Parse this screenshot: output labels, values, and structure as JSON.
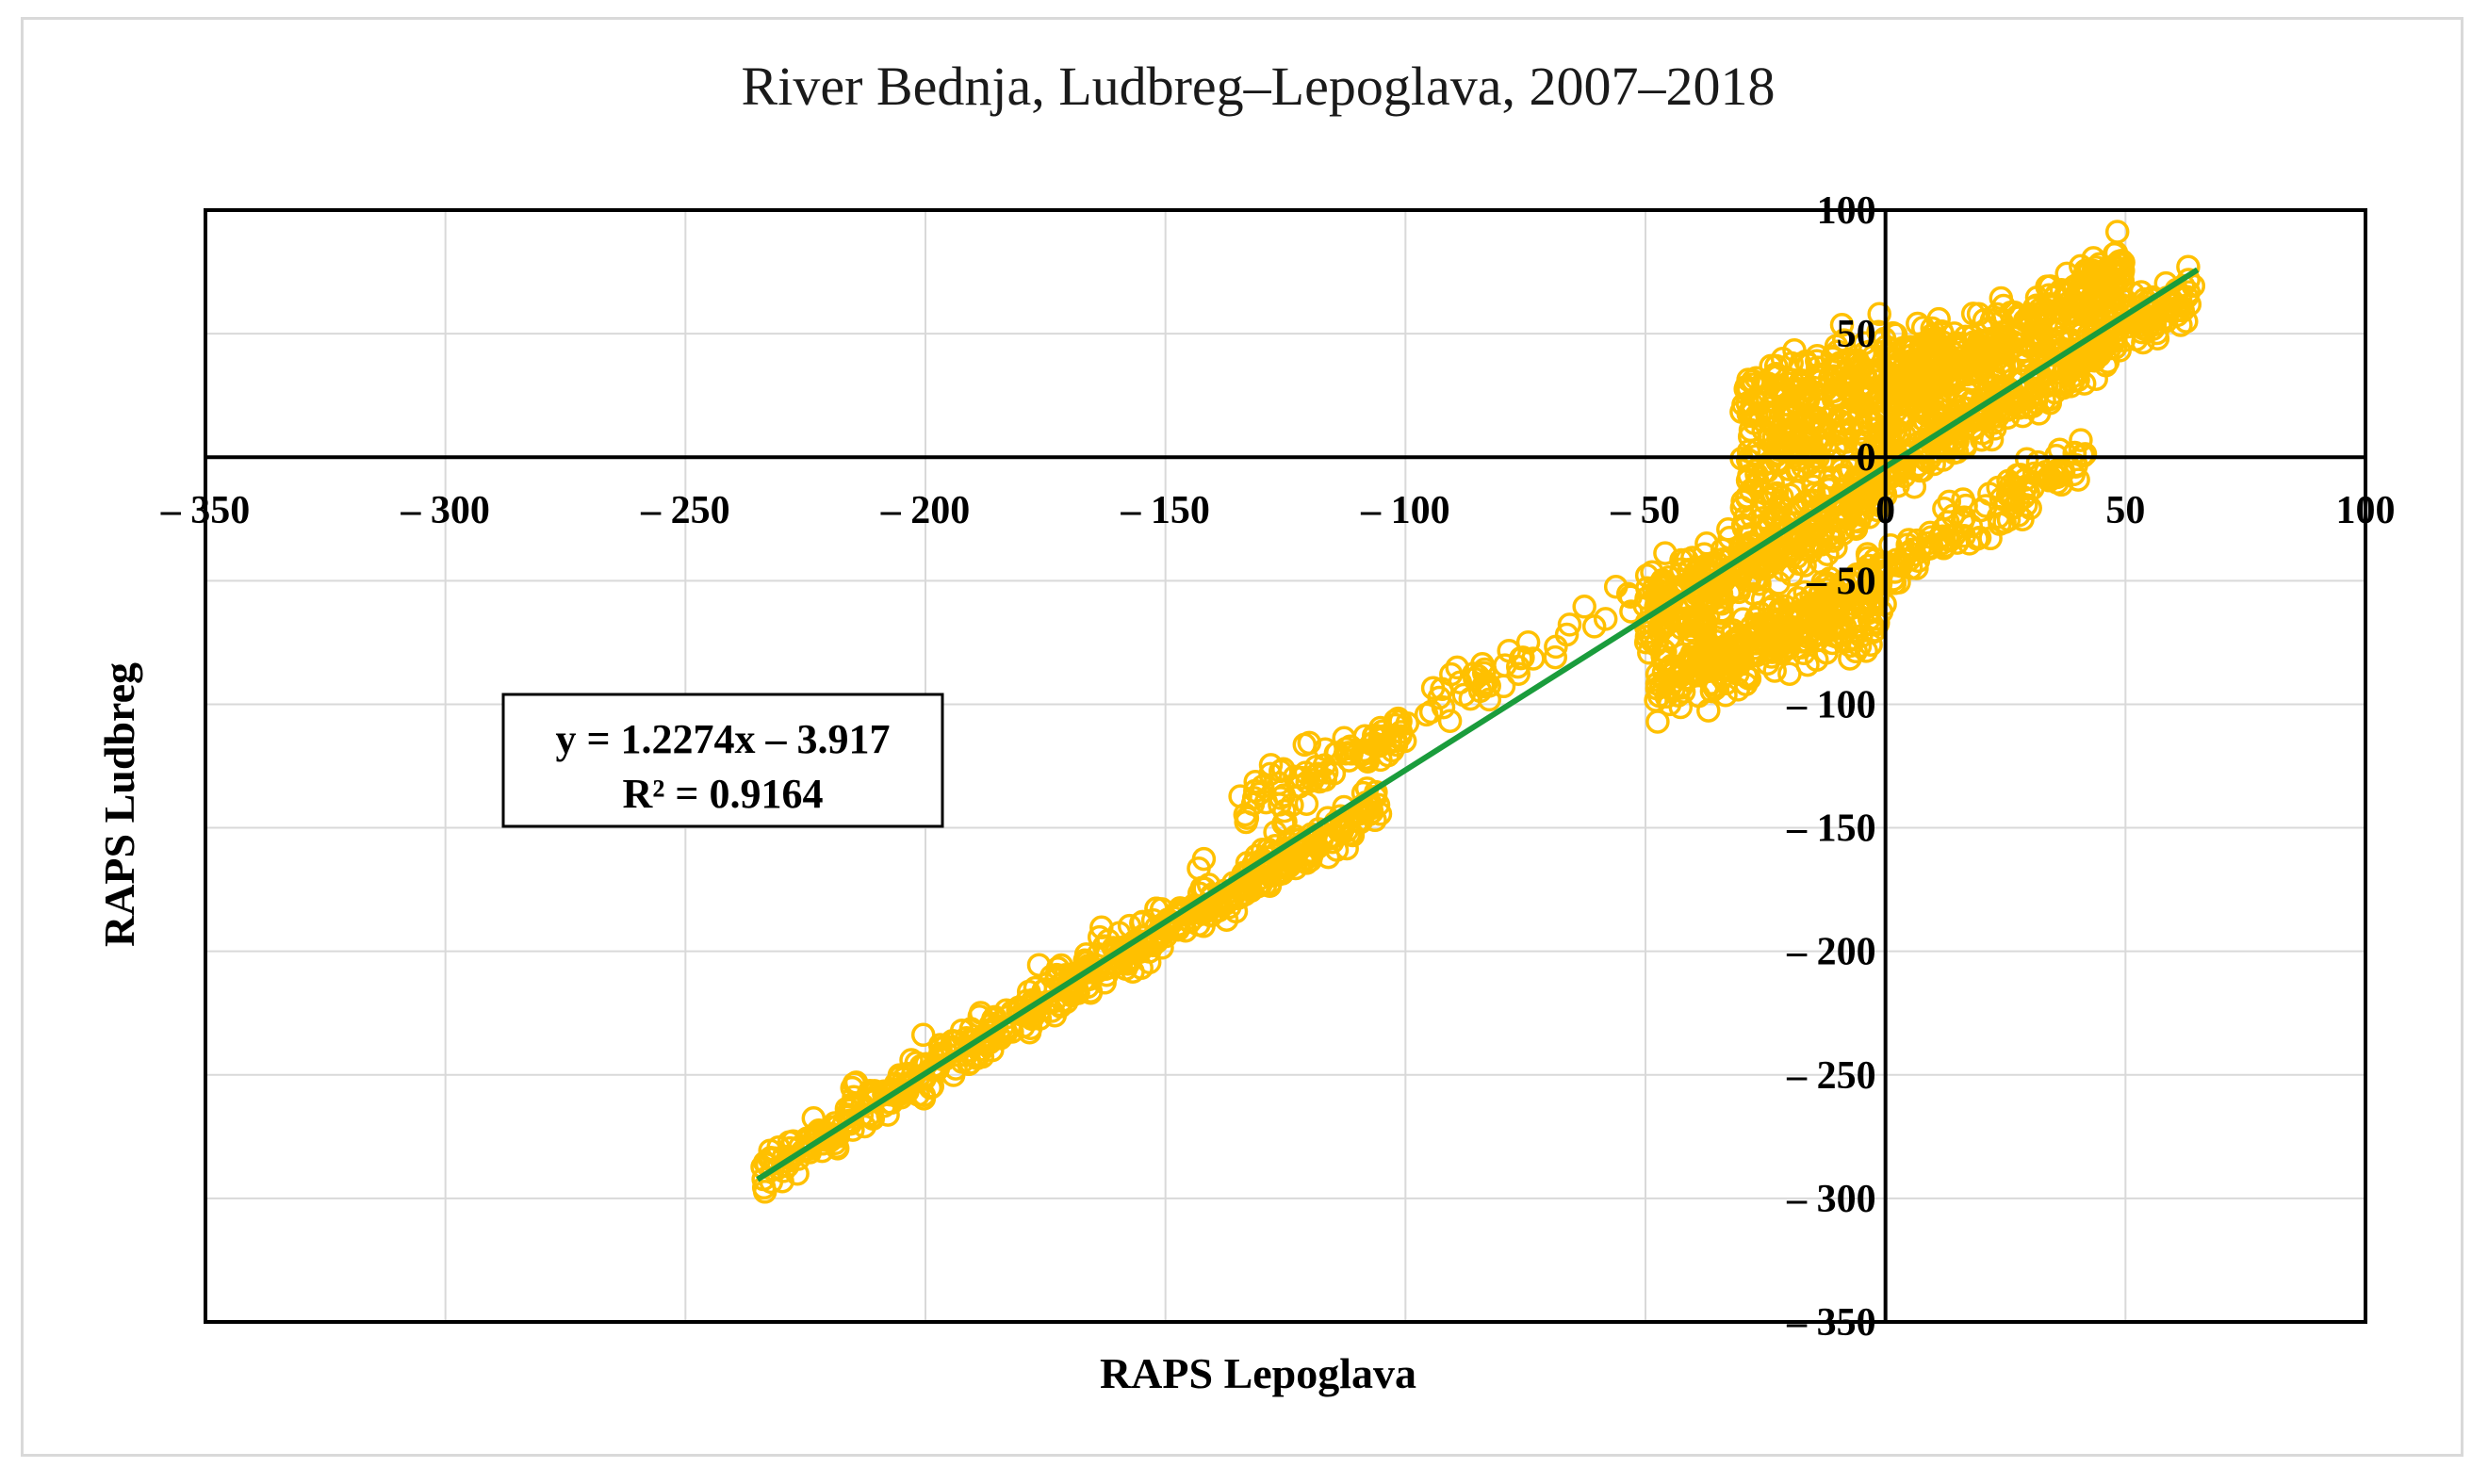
{
  "chart_data": {
    "type": "scatter",
    "title": "River Bednja, Ludbreg–Lepoglava, 2007–2018",
    "xlabel": "RAPS Lepoglava",
    "ylabel": "RAPS Ludbreg",
    "xlim": [
      -350,
      100
    ],
    "ylim": [
      -350,
      100
    ],
    "xticks": [
      -350,
      -300,
      -250,
      -200,
      -150,
      -100,
      -50,
      0,
      50,
      100
    ],
    "yticks": [
      100,
      50,
      0,
      -50,
      -100,
      -150,
      -200,
      -250,
      -300,
      -350
    ],
    "x_tick_labels": [
      "– 350",
      "– 300",
      "– 250",
      "– 200",
      "– 150",
      "– 100",
      "– 50",
      "0",
      "50",
      "100"
    ],
    "y_tick_labels": [
      "100",
      "50",
      "0",
      "– 50",
      "– 100",
      "– 150",
      "– 200",
      "– 250",
      "– 300",
      "– 350"
    ],
    "grid": true,
    "marker_color": "#ffc000",
    "trendline_color": "#1a9c3c",
    "series": [
      {
        "name": "RAPS",
        "clusters": [
          {
            "x_range": [
              -234,
              -105
            ],
            "slope": 1.16,
            "intercept": -18,
            "spread": 4,
            "count": 420
          },
          {
            "x_range": [
              -225,
              -120
            ],
            "slope": 1.23,
            "intercept": -2,
            "spread": 6,
            "count": 120
          },
          {
            "x_range": [
              -135,
              -100
            ],
            "slope": 0.9,
            "intercept": -20,
            "spread": 5,
            "count": 80
          },
          {
            "x_range": [
              -105,
              -40
            ],
            "slope": 1.1,
            "intercept": 2,
            "spread": 5,
            "count": 60
          },
          {
            "x_range": [
              -50,
              0
            ],
            "slope": 1.2,
            "intercept": -8,
            "spread": 8,
            "count": 350
          },
          {
            "x_range": [
              -48,
              0
            ],
            "slope": 0.6,
            "intercept": -62,
            "spread": 7,
            "count": 200
          },
          {
            "x_range": [
              -42,
              42
            ],
            "slope": 1.05,
            "intercept": -44,
            "spread": 5,
            "count": 260
          },
          {
            "x_range": [
              -30,
              12
            ],
            "slope": 0.55,
            "intercept": 36,
            "spread": 8,
            "count": 200
          },
          {
            "x_range": [
              -30,
              50
            ],
            "slope": 1.0,
            "intercept": 20,
            "spread": 10,
            "count": 380
          },
          {
            "x_range": [
              0,
              65
            ],
            "slope": 1.12,
            "intercept": -5,
            "spread": 6,
            "count": 300
          },
          {
            "x_range": [
              0,
              50
            ],
            "slope": 1.2,
            "intercept": 20,
            "spread": 4,
            "count": 150
          }
        ]
      }
    ],
    "trendline": {
      "slope": 1.2274,
      "intercept": -3.917,
      "x_range": [
        -235,
        65
      ]
    },
    "equation_label": "y = 1.2274x – 3.917",
    "r2_label": "R² = 0.9164"
  }
}
